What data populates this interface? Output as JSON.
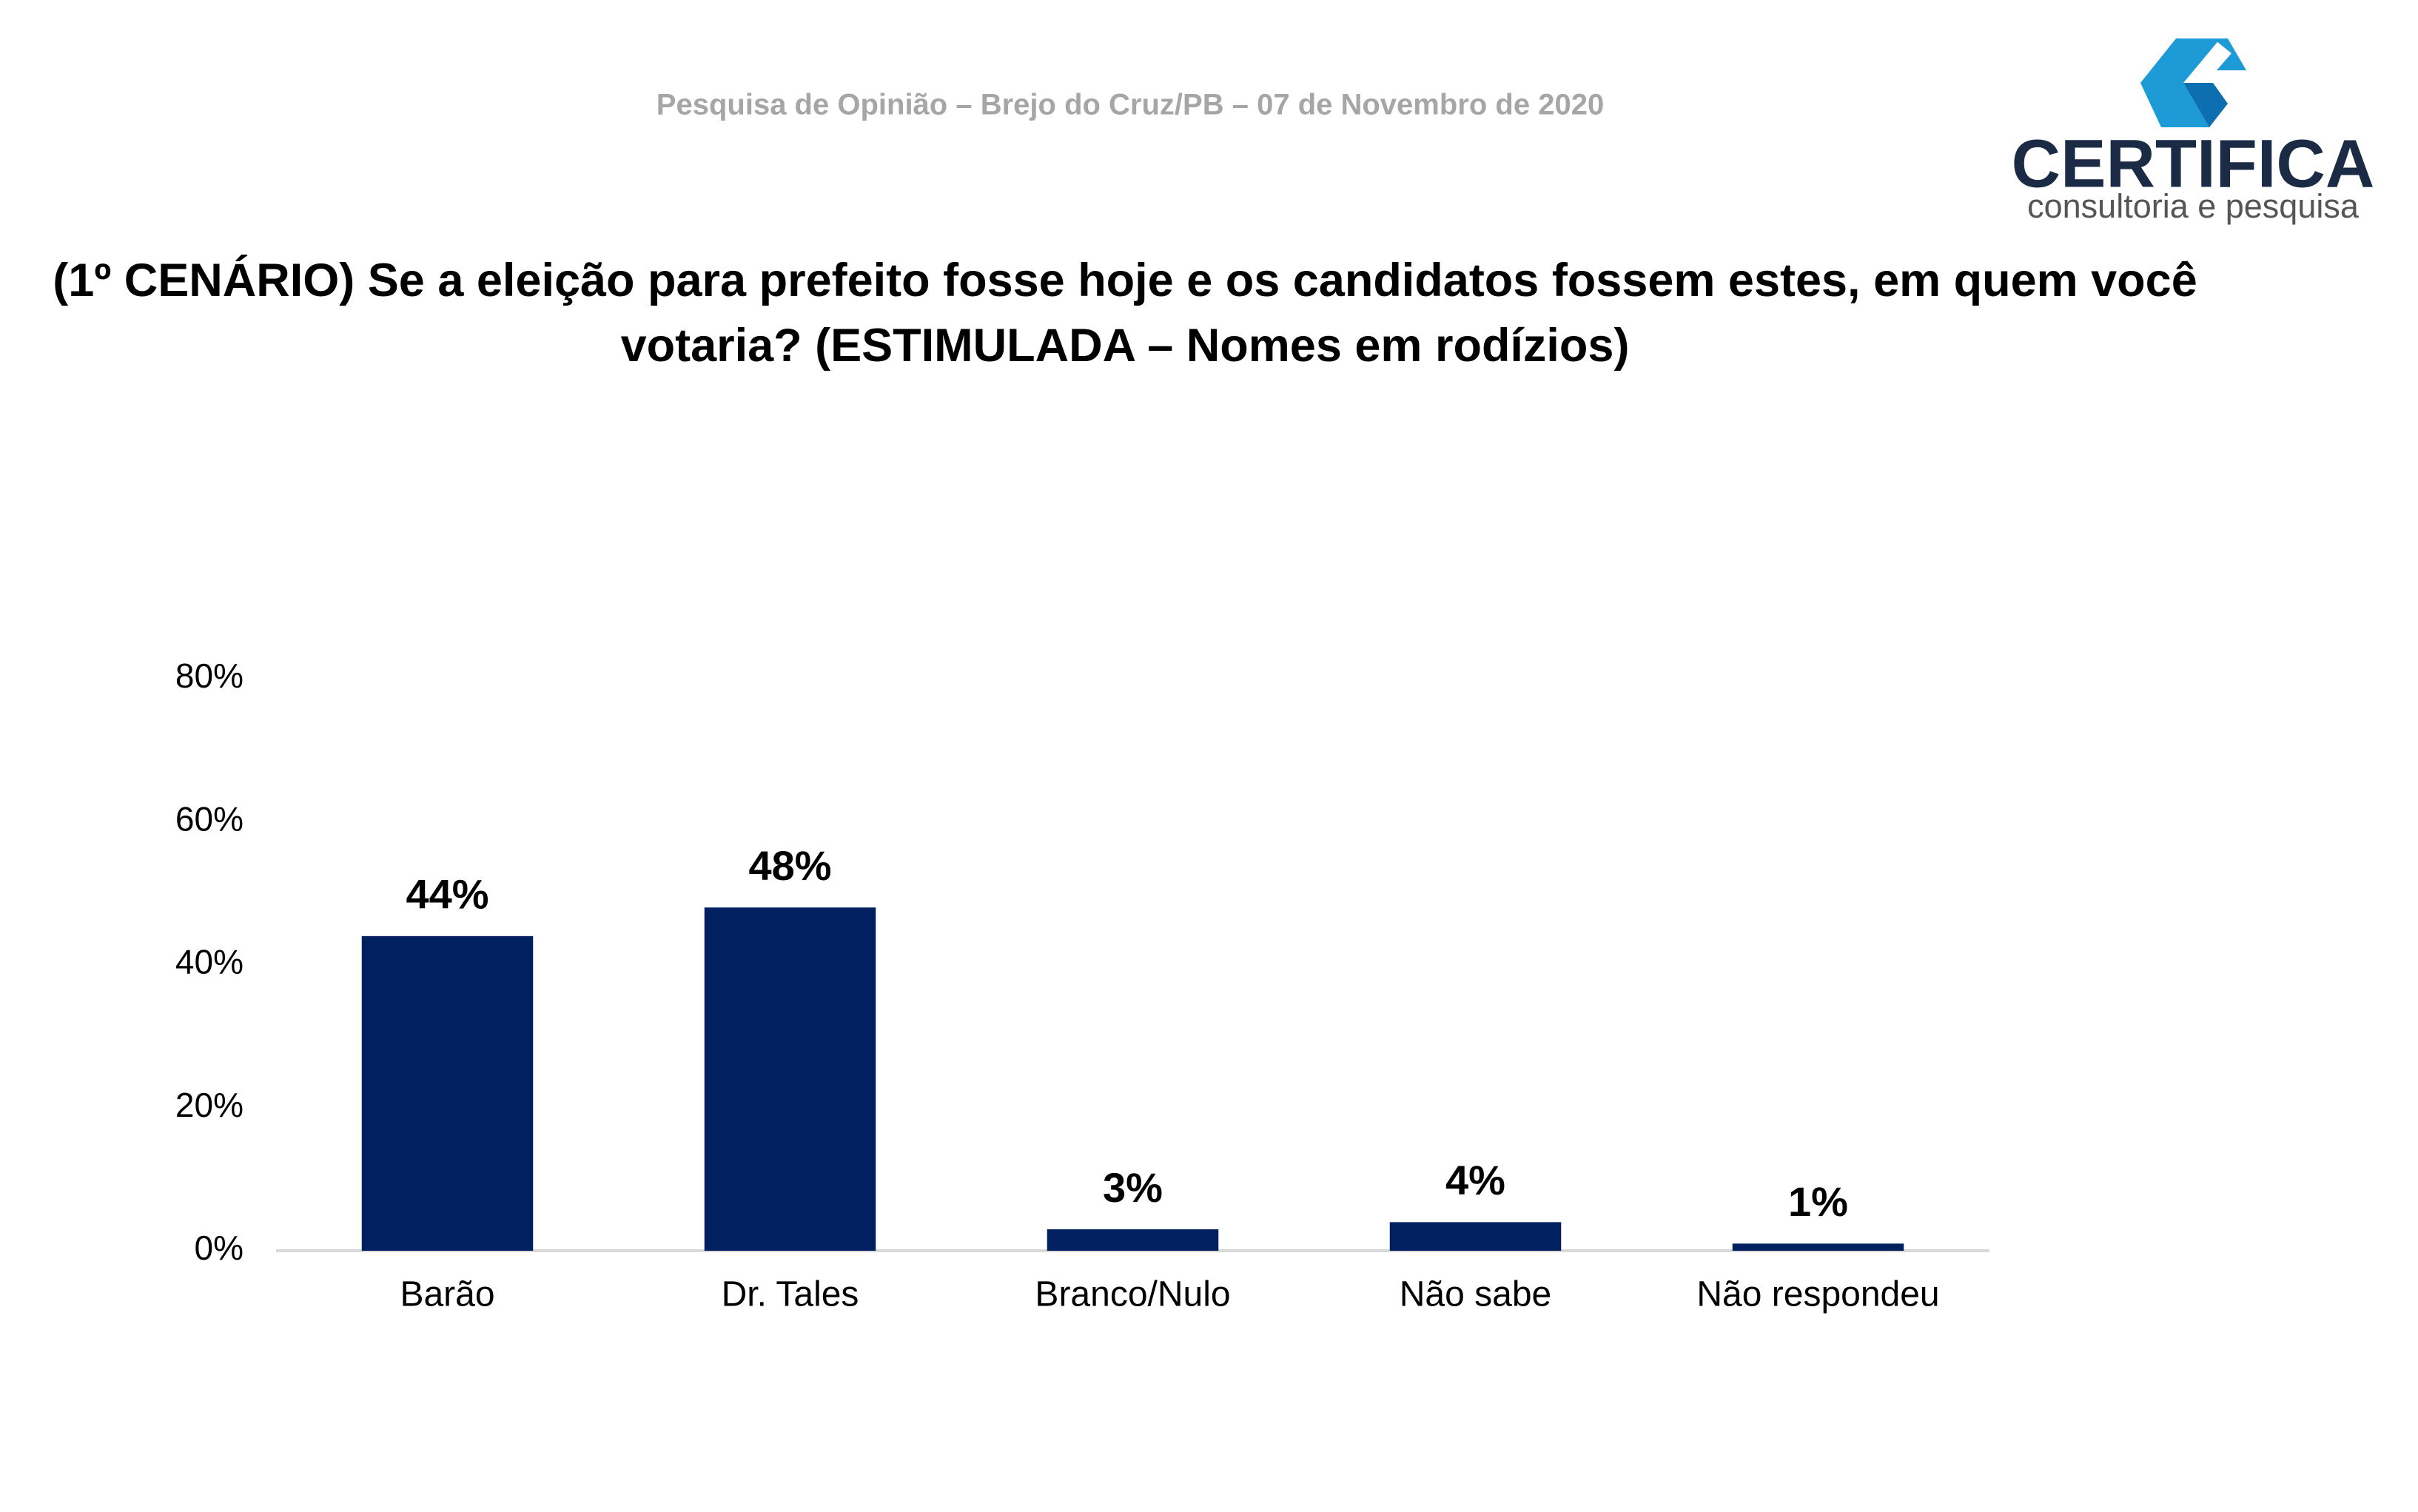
{
  "chart_data": {
    "type": "bar",
    "subtitle": "Pesquisa de Opinião – Brejo do Cruz/PB – 07 de Novembro de 2020",
    "title": "(1º CENÁRIO) Se a eleição para prefeito fosse hoje e os candidatos fossem estes, em quem você votaria? (ESTIMULADA – Nomes em rodízios)",
    "categories": [
      "Barão",
      "Dr. Tales",
      "Branco/Nulo",
      "Não sabe",
      "Não respondeu"
    ],
    "values": [
      44,
      48,
      3,
      4,
      1
    ],
    "value_labels": [
      "44%",
      "48%",
      "3%",
      "4%",
      "1%"
    ],
    "color": "#002060",
    "ylim": [
      0,
      80
    ],
    "yticks": [
      {
        "value": 0,
        "label": "0%"
      },
      {
        "value": 20,
        "label": "20%"
      },
      {
        "value": 40,
        "label": "40%"
      },
      {
        "value": 60,
        "label": "60%"
      },
      {
        "value": 80,
        "label": "80%"
      }
    ],
    "grid": false
  },
  "logo": {
    "name": "CERTIFICA",
    "tagline": "consultoria e pesquisa"
  }
}
